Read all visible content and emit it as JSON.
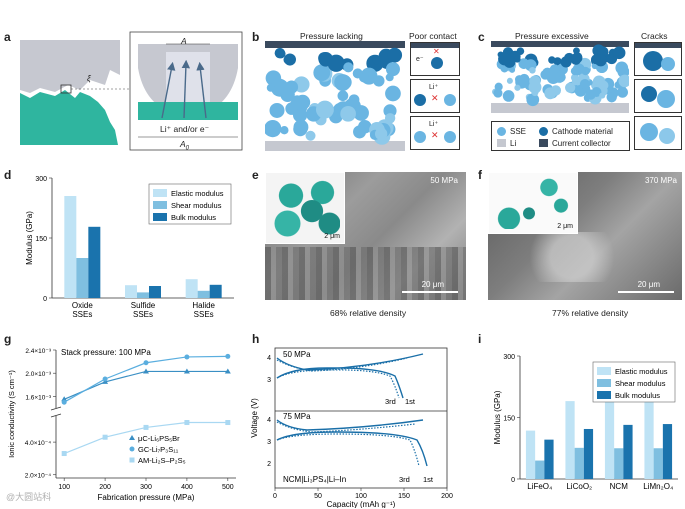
{
  "panels": {
    "a": {
      "label": "a",
      "A": "A",
      "xi": "ξ",
      "A0": "A",
      "A0_sub": "0",
      "carriers": "Li⁺ and/or e⁻"
    },
    "b": {
      "label": "b",
      "title": "Pressure lacking",
      "side_title": "Poor contact",
      "e_label": "e⁻",
      "li_label_1": "Li⁺",
      "li_label_2": "Li⁺"
    },
    "c": {
      "label": "c",
      "title": "Pressure excessive",
      "side_title": "Cracks",
      "legend": {
        "sse": "SSE",
        "cathode": "Cathode material",
        "li": "Li",
        "collector": "Current collector"
      }
    },
    "e": {
      "label": "e",
      "pressure": "50 MPa",
      "inset_scale": "2 μm",
      "scale": "20 μm",
      "caption": "68% relative density"
    },
    "f": {
      "label": "f",
      "pressure": "370 MPa",
      "inset_scale": "2 μm",
      "scale": "20 μm",
      "caption": "77% relative density"
    },
    "h_label": "h",
    "g_label": "g",
    "d_label": "d",
    "i_label": "i",
    "h": {
      "top_pressure": "50 MPa",
      "bottom_pressure": "75 MPa",
      "cell": "NCM|Li₃PS₄|Li–In",
      "cycle3": "3rd",
      "cycle1": "1st",
      "cycle3b": "3rd",
      "cycle1b": "1st",
      "xlabel": "Capacity (mAh g⁻¹)",
      "ylabel": "Voltage (V)",
      "xticks": [
        "0",
        "50",
        "100",
        "150",
        "200"
      ],
      "yticks_top": [
        "4",
        "3"
      ],
      "yticks_bottom": [
        "4",
        "3",
        "2"
      ]
    },
    "watermark": "@大圆站科"
  },
  "colors": {
    "dark": "#1a6fa8",
    "mid": "#5aa7d6",
    "light": "#bfe3f5",
    "teal": "#3bb8a3",
    "grey": "#b8bcc4"
  },
  "chart_data": [
    {
      "id": "d",
      "type": "bar",
      "title": "",
      "ylabel": "Modulus (GPa)",
      "xlabel": "",
      "ylim": [
        0,
        300
      ],
      "yticks": [
        "0",
        "150",
        "300"
      ],
      "categories": [
        "Oxide SSEs",
        "Sulfide SSEs",
        "Halide SSEs"
      ],
      "category_lines": [
        [
          "Oxide",
          "SSEs"
        ],
        [
          "Sulfide",
          "SSEs"
        ],
        [
          "Halide",
          "SSEs"
        ]
      ],
      "series": [
        {
          "name": "Elastic modulus",
          "values": [
            255,
            32,
            47
          ],
          "color": "#bfe3f5"
        },
        {
          "name": "Shear modulus",
          "values": [
            100,
            14,
            18
          ],
          "color": "#7fbfe0"
        },
        {
          "name": "Bulk modulus",
          "values": [
            178,
            30,
            33
          ],
          "color": "#1a73ad"
        }
      ],
      "legend": "top-right"
    },
    {
      "id": "g",
      "type": "line",
      "title": "Stack pressure: 100 MPa",
      "xlabel": "Fabrication pressure (MPa)",
      "ylabel": "Ionic conductivity (S cm⁻¹)",
      "x": [
        100,
        200,
        300,
        400,
        500
      ],
      "xticks": [
        "100",
        "200",
        "300",
        "400",
        "500"
      ],
      "yticks_upper": [
        "2.4×10⁻³",
        "2.0×10⁻³",
        "1.6×10⁻³"
      ],
      "yticks_lower": [
        "4.0×10⁻⁴",
        "2.0×10⁻⁴"
      ],
      "broken_axis": true,
      "series": [
        {
          "name": "μC-Li₆PS₅Br",
          "marker": "triangle",
          "values": [
            0.00155,
            0.00185,
            0.00203,
            0.00203,
            0.00203
          ],
          "color": "#3a8fc4"
        },
        {
          "name": "GC-Li₇P₃S₁₁",
          "marker": "circle",
          "values": [
            0.0015,
            0.0019,
            0.00218,
            0.00228,
            0.00229
          ],
          "color": "#5aaedf"
        },
        {
          "name": "AM-Li₂S–P₂S₅",
          "marker": "square",
          "values": [
            0.00033,
            0.00043,
            0.00049,
            0.00052,
            0.00052
          ],
          "color": "#a9d8f2"
        }
      ],
      "legend": "bottom-right"
    },
    {
      "id": "i",
      "type": "bar",
      "title": "",
      "ylabel": "Modulus (GPa)",
      "xlabel": "",
      "ylim": [
        0,
        300
      ],
      "yticks": [
        "0",
        "150",
        "300"
      ],
      "categories": [
        "LiFeO₄",
        "LiCoO₂",
        "NCM",
        "LiMn₂O₄"
      ],
      "series": [
        {
          "name": "Elastic modulus",
          "values": [
            118,
            190,
            197,
            192
          ],
          "color": "#bfe3f5"
        },
        {
          "name": "Shear modulus",
          "values": [
            45,
            76,
            75,
            75
          ],
          "color": "#7fbfe0"
        },
        {
          "name": "Bulk modulus",
          "values": [
            96,
            122,
            132,
            134
          ],
          "color": "#1a73ad"
        }
      ],
      "legend": "top-right"
    }
  ]
}
